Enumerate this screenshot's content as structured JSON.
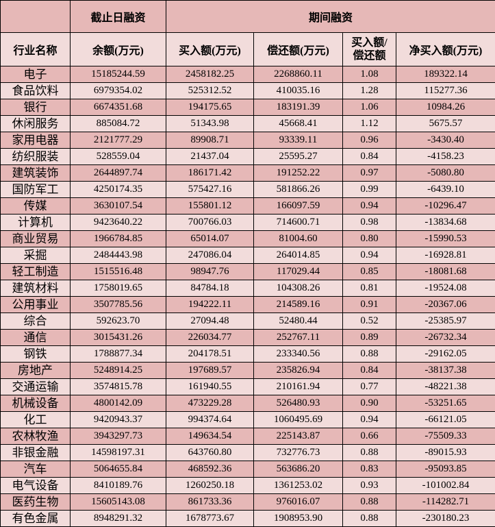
{
  "header": {
    "group_balance": "截止日融资",
    "group_period": "期间融资",
    "col_industry": "行业名称",
    "col_balance": "余额(万元)",
    "col_buy": "买入额(万元)",
    "col_repay": "偿还额(万元)",
    "col_ratio_line1": "买入额/",
    "col_ratio_line2": "偿还额",
    "col_net": "净买入额(万元)"
  },
  "colors": {
    "row_dark": "#e6b8b7",
    "row_light": "#f2dcdb"
  },
  "rows": [
    [
      "电子",
      "15185244.59",
      "2458182.25",
      "2268860.11",
      "1.08",
      "189322.14"
    ],
    [
      "食品饮料",
      "6979354.02",
      "525312.52",
      "410035.16",
      "1.28",
      "115277.36"
    ],
    [
      "银行",
      "6674351.68",
      "194175.65",
      "183191.39",
      "1.06",
      "10984.26"
    ],
    [
      "休闲服务",
      "885084.72",
      "51343.98",
      "45668.41",
      "1.12",
      "5675.57"
    ],
    [
      "家用电器",
      "2121777.29",
      "89908.71",
      "93339.11",
      "0.96",
      "-3430.40"
    ],
    [
      "纺织服装",
      "528559.04",
      "21437.04",
      "25595.27",
      "0.84",
      "-4158.23"
    ],
    [
      "建筑装饰",
      "2644897.74",
      "186171.42",
      "191252.22",
      "0.97",
      "-5080.80"
    ],
    [
      "国防军工",
      "4250174.35",
      "575427.16",
      "581866.26",
      "0.99",
      "-6439.10"
    ],
    [
      "传媒",
      "3630107.54",
      "155801.12",
      "166097.59",
      "0.94",
      "-10296.47"
    ],
    [
      "计算机",
      "9423640.22",
      "700766.03",
      "714600.71",
      "0.98",
      "-13834.68"
    ],
    [
      "商业贸易",
      "1966784.85",
      "65014.07",
      "81004.60",
      "0.80",
      "-15990.53"
    ],
    [
      "采掘",
      "2484443.98",
      "247086.04",
      "264014.85",
      "0.94",
      "-16928.81"
    ],
    [
      "轻工制造",
      "1515516.48",
      "98947.76",
      "117029.44",
      "0.85",
      "-18081.68"
    ],
    [
      "建筑材料",
      "1758019.65",
      "84784.18",
      "104308.26",
      "0.81",
      "-19524.08"
    ],
    [
      "公用事业",
      "3507785.56",
      "194222.11",
      "214589.16",
      "0.91",
      "-20367.06"
    ],
    [
      "综合",
      "592623.70",
      "27094.48",
      "52480.44",
      "0.52",
      "-25385.97"
    ],
    [
      "通信",
      "3015431.26",
      "226034.77",
      "252767.11",
      "0.89",
      "-26732.34"
    ],
    [
      "钢铁",
      "1788877.34",
      "204178.51",
      "233340.56",
      "0.88",
      "-29162.05"
    ],
    [
      "房地产",
      "5248914.25",
      "197689.57",
      "235826.94",
      "0.84",
      "-38137.38"
    ],
    [
      "交通运输",
      "3574815.78",
      "161940.55",
      "210161.94",
      "0.77",
      "-48221.38"
    ],
    [
      "机械设备",
      "4800142.09",
      "473229.28",
      "526480.93",
      "0.90",
      "-53251.65"
    ],
    [
      "化工",
      "9420943.37",
      "994374.64",
      "1060495.69",
      "0.94",
      "-66121.05"
    ],
    [
      "农林牧渔",
      "3943297.73",
      "149634.54",
      "225143.87",
      "0.66",
      "-75509.33"
    ],
    [
      "非银金融",
      "14598197.31",
      "643760.80",
      "732776.73",
      "0.88",
      "-89015.93"
    ],
    [
      "汽车",
      "5064655.84",
      "468592.36",
      "563686.20",
      "0.83",
      "-95093.85"
    ],
    [
      "电气设备",
      "8410189.76",
      "1260250.18",
      "1361253.02",
      "0.93",
      "-101002.84"
    ],
    [
      "医药生物",
      "15605143.08",
      "861733.36",
      "976016.07",
      "0.88",
      "-114282.71"
    ],
    [
      "有色金属",
      "8948291.32",
      "1678773.67",
      "1908953.90",
      "0.88",
      "-230180.23"
    ]
  ]
}
